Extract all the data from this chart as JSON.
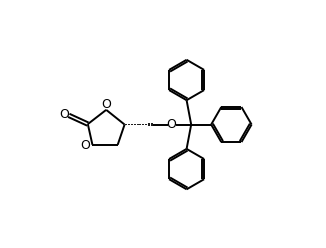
{
  "bg_color": "#ffffff",
  "line_color": "#000000",
  "line_width": 1.4,
  "figsize": [
    3.26,
    2.48
  ],
  "dpi": 100,
  "xlim": [
    -0.5,
    10.5
  ],
  "ylim": [
    -0.3,
    8.0
  ]
}
